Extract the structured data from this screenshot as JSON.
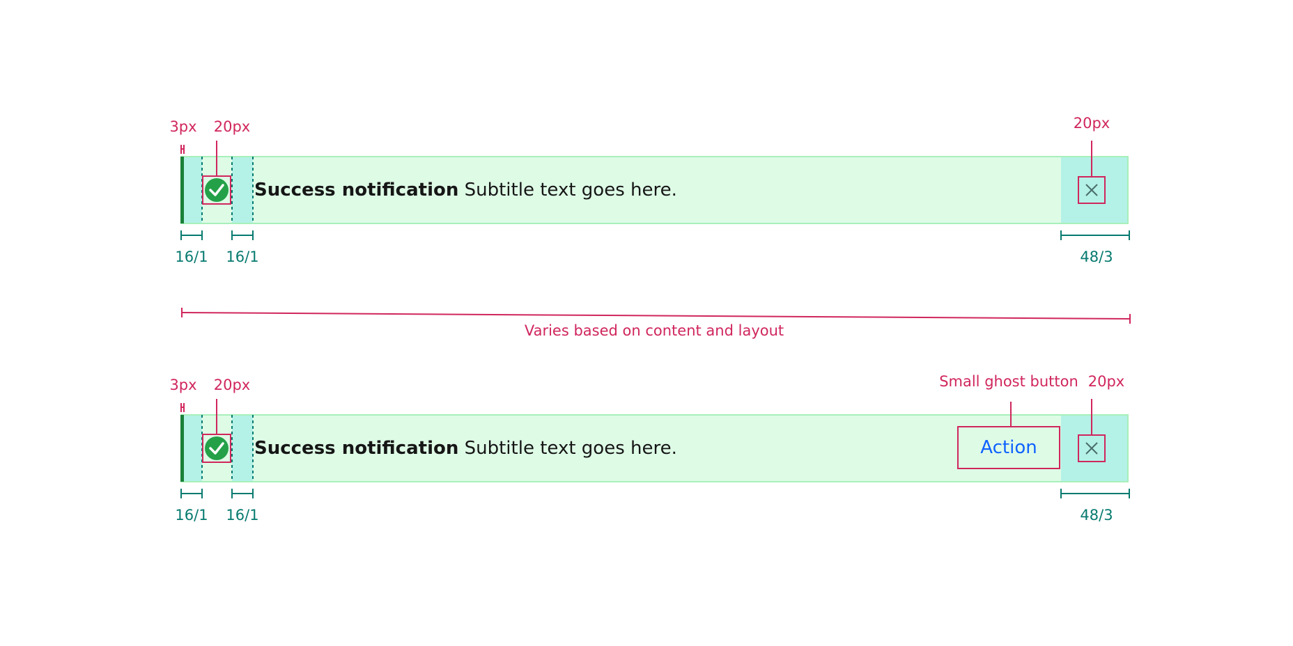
{
  "colors": {
    "accent_annotation": "#d0265c",
    "spacing_annotation": "#067a6f",
    "notification_bg": "#defbe6",
    "notification_border": "#a7f0ba",
    "padding_highlight": "#b4f1e7",
    "success_green": "#24a148",
    "left_border_green": "#198038",
    "action_blue": "#0f62fe",
    "text_primary": "#161616"
  },
  "notification_1": {
    "title": "Success notification",
    "subtitle": "Subtitle text goes here.",
    "icon": "checkmark-filled-icon",
    "close_icon": "close-icon",
    "annotations": {
      "border_width": "3px",
      "icon_size": "20px",
      "close_icon_size": "20px",
      "padding_left": "16/1",
      "padding_icon_text": "16/1",
      "close_area": "48/3"
    }
  },
  "width_note": "Varies based on content and layout",
  "notification_2": {
    "title": "Success notification",
    "subtitle": "Subtitle text goes here.",
    "icon": "checkmark-filled-icon",
    "close_icon": "close-icon",
    "action_label": "Action",
    "annotations": {
      "border_width": "3px",
      "icon_size": "20px",
      "button_type": "Small ghost button",
      "close_icon_size": "20px",
      "padding_left": "16/1",
      "padding_icon_text": "16/1",
      "close_area": "48/3"
    }
  }
}
